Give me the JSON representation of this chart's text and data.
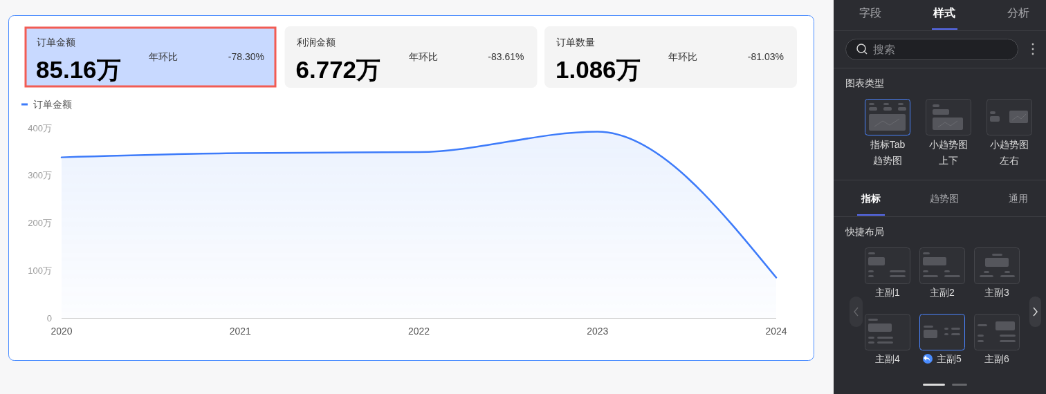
{
  "chart_data": [
    {
      "type": "other",
      "annotations": [
        "订单金额",
        "85.16万",
        "年环比",
        "-78.30%",
        "利润金额",
        "6.772万",
        "年环比",
        "-83.61%",
        "订单数量",
        "1.086万",
        "年环比",
        "-81.03%"
      ]
    },
    {
      "type": "area",
      "categories": [
        "2020",
        "2021",
        "2022",
        "2023",
        "2024"
      ],
      "series": [
        {
          "name": "订单金额",
          "color": "#3d7bfa",
          "values": [
            338,
            347,
            349,
            392,
            85
          ]
        }
      ],
      "ylim": [
        0,
        400
      ],
      "yticks": [
        0,
        {
          "value": 100,
          "label": "100万"
        },
        {
          "value": 200,
          "label": "200万"
        },
        {
          "value": 300,
          "label": "300万"
        },
        {
          "value": 400,
          "label": "400万"
        }
      ],
      "legend": "top left",
      "grid": false
    },
    {
      "type": "other",
      "annotations": [
        "字段",
        "样式",
        "分析",
        "搜索",
        "图表类型",
        "指标Tab趋势图",
        "小趋势图上下",
        "小趋势图左右",
        "指标",
        "趋势图",
        "通用",
        "快捷布局",
        "主副1",
        "主副2",
        "主副3",
        "主副4",
        "主副5",
        "主副6"
      ]
    }
  ]
}
